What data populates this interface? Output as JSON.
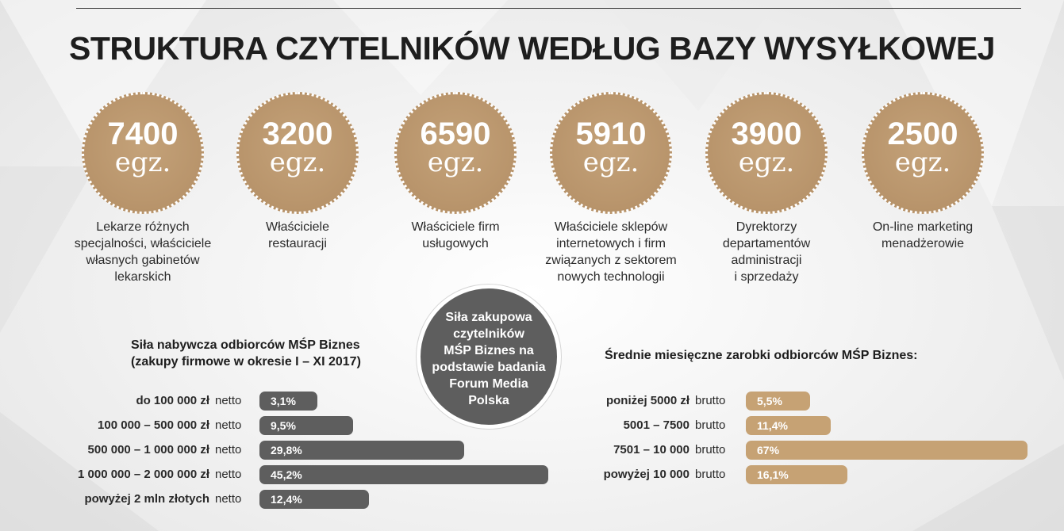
{
  "title": "STRUKTURA CZYTELNIKÓW WEDŁUG BAZY WYSYŁKOWEJ",
  "colors": {
    "medal": "#b8946b",
    "dark_bar": "#5e5e5e",
    "gold_bar": "#c6a274",
    "center_badge": "#5e5e5e"
  },
  "stats": [
    {
      "value": "7400",
      "unit": "egz.",
      "lines": [
        "Lekarze różnych",
        "specjalności, właściciele",
        "własnych gabinetów",
        "lekarskich"
      ]
    },
    {
      "value": "3200",
      "unit": "egz.",
      "lines": [
        "Właściciele",
        "restauracji"
      ]
    },
    {
      "value": "6590",
      "unit": "egz.",
      "lines": [
        "Właściciele firm",
        "usługowych"
      ]
    },
    {
      "value": "5910",
      "unit": "egz.",
      "lines": [
        "Właściciele sklepów",
        "internetowych i firm",
        "związanych z sektorem",
        "nowych technologii"
      ]
    },
    {
      "value": "3900",
      "unit": "egz.",
      "lines": [
        "Dyrektorzy",
        "departamentów",
        "administracji",
        "i sprzedaży"
      ]
    },
    {
      "value": "2500",
      "unit": "egz.",
      "lines": [
        "On-line marketing",
        "menadżerowie"
      ]
    }
  ],
  "center_badge": {
    "lines": [
      "Siła zakupowa",
      "czytelników",
      "MŚP Biznes na",
      "podstawie badania",
      "Forum Media",
      "Polska"
    ]
  },
  "chart_data": [
    {
      "type": "bar",
      "orientation": "horizontal",
      "title": "Siła nabywcza odbiorców MŚP Biznes (zakupy firmowe w okresie I – XI 2017)",
      "title_lines": [
        "Siła nabywcza odbiorców MŚP Biznes",
        "(zakupy firmowe w okresie I – XI 2017)"
      ],
      "qualifier": "netto",
      "categories": [
        "do 100 000 zł",
        "100 000 – 500 000 zł",
        "500 000 – 1 000 000 zł",
        "1 000 000 – 2 000 000 zł",
        "powyżej 2 mln złotych"
      ],
      "values": [
        3.1,
        9.5,
        29.8,
        45.2,
        12.4
      ],
      "labels": [
        "3,1%",
        "9,5%",
        "29,8%",
        "45,2%",
        "12,4%"
      ],
      "unit": "%"
    },
    {
      "type": "bar",
      "orientation": "horizontal",
      "title": "Średnie miesięczne zarobki odbiorców MŚP Biznes:",
      "title_lines": [
        "Średnie miesięczne zarobki odbiorców MŚP Biznes:"
      ],
      "qualifier": "brutto",
      "categories": [
        "poniżej 5000 zł",
        "5001 – 7500",
        "7501 – 10 000",
        "powyżej 10 000"
      ],
      "values": [
        5.5,
        11.4,
        67,
        16.1
      ],
      "labels": [
        "5,5%",
        "11,4%",
        "67%",
        "16,1%"
      ],
      "unit": "%"
    }
  ]
}
